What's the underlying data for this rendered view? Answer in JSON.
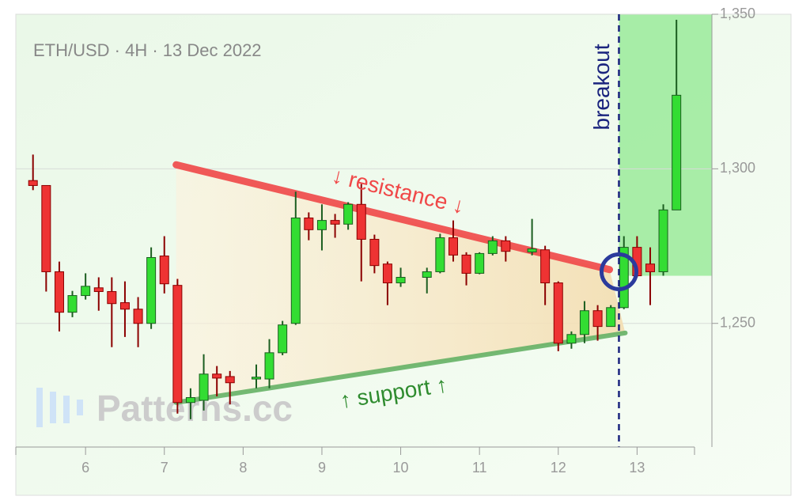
{
  "chart_data": {
    "type": "candlestick",
    "title": "ETH/USD · 4H · 13 Dec 2022",
    "watermark": "Patterns.cc",
    "up_color": "#33dd33",
    "down_color": "#ee3333",
    "x": [
      5.333,
      5.5,
      5.667,
      5.833,
      6,
      6.167,
      6.333,
      6.5,
      6.667,
      6.833,
      7,
      7.167,
      7.333,
      7.5,
      7.667,
      7.833,
      8.167,
      8.333,
      8.5,
      8.667,
      8.833,
      9,
      9.167,
      9.333,
      9.5,
      9.667,
      9.833,
      10,
      10.333,
      10.5,
      10.667,
      10.833,
      11,
      11.167,
      11.333,
      11.667,
      11.833,
      12,
      12.167,
      12.333,
      12.5,
      12.667,
      12.833,
      13,
      13.167,
      13.333,
      13.5
    ],
    "open": [
      1296.2,
      1294.6,
      1266.7,
      1253.6,
      1259,
      1261.5,
      1260.3,
      1256.7,
      1254.6,
      1250,
      1271.8,
      1262.3,
      1224.4,
      1225.1,
      1233.6,
      1232.8,
      1232,
      1232,
      1240.5,
      1250,
      1284.1,
      1280.3,
      1283.3,
      1282.1,
      1288.5,
      1277.2,
      1269.2,
      1263.1,
      1264.9,
      1266.7,
      1277.7,
      1272.1,
      1266.2,
      1272.6,
      1276.7,
      1273.1,
      1273.8,
      1263.1,
      1243.6,
      1246.4,
      1254.1,
      1249,
      1255.1,
      1274.6,
      1269.2,
      1266.7,
      1286.7
    ],
    "high": [
      1304.6,
      1294.6,
      1270,
      1260.5,
      1266.2,
      1264.9,
      1264.9,
      1263.6,
      1258.5,
      1274.6,
      1278.2,
      1264.4,
      1229,
      1240,
      1236.2,
      1234.6,
      1236.7,
      1244.9,
      1250.8,
      1292.6,
      1285.9,
      1288.5,
      1285.4,
      1289.2,
      1295.1,
      1278.7,
      1270,
      1268,
      1268,
      1279,
      1283.3,
      1273,
      1273,
      1278.2,
      1278.2,
      1283.8,
      1275.1,
      1263.6,
      1247.4,
      1257.2,
      1255.9,
      1255.9,
      1278.2,
      1278.2,
      1274.6,
      1288.5,
      1348.2
    ],
    "low": [
      1293.1,
      1260.3,
      1247.4,
      1252,
      1257.7,
      1254.1,
      1242.3,
      1245.6,
      1242.3,
      1248.2,
      1259.7,
      1220.8,
      1219,
      1221.8,
      1226.4,
      1223.8,
      1229,
      1229,
      1239.7,
      1249.5,
      1276.9,
      1273.6,
      1277.7,
      1280.3,
      1263.6,
      1266.2,
      1255.9,
      1261.8,
      1259.7,
      1266.2,
      1270,
      1262.3,
      1265.9,
      1272,
      1270,
      1272,
      1255.9,
      1241,
      1241.8,
      1243.6,
      1244.4,
      1249,
      1254.6,
      1264.9,
      1255.9,
      1265.4,
      1286.7
    ],
    "close": [
      1294.6,
      1266.7,
      1253.6,
      1259,
      1262,
      1260.3,
      1256.4,
      1254.6,
      1250,
      1271.3,
      1262.8,
      1224.4,
      1226,
      1233.6,
      1232.3,
      1230.8,
      1232.6,
      1240.5,
      1249.5,
      1284.1,
      1280.3,
      1283.3,
      1282.1,
      1288.5,
      1277.2,
      1268.7,
      1263.1,
      1264.9,
      1266.7,
      1277.7,
      1272.1,
      1266.2,
      1272.6,
      1276.7,
      1273.3,
      1274.1,
      1263.1,
      1243.6,
      1246.4,
      1254.1,
      1249,
      1255.1,
      1274.6,
      1265.4,
      1266.7,
      1286.7,
      1323.8
    ],
    "xlim": [
      5.115,
      13.95
    ],
    "ylim": [
      1210,
      1350
    ],
    "xticks": [
      6,
      7,
      8,
      9,
      10,
      11,
      12,
      13
    ],
    "yticks": [
      {
        "value": 1250,
        "label": "1,250"
      },
      {
        "value": 1300,
        "label": "1,300"
      },
      {
        "value": 1350,
        "label": "1,350"
      }
    ],
    "grid": true,
    "resistance": {
      "label": "↓ resistance ↓",
      "color": "#f04848",
      "x": [
        7.15,
        12.65
      ],
      "y": [
        1301.3,
        1267.4
      ]
    },
    "support": {
      "label": "↑ support ↑",
      "color": "#66b266",
      "x": [
        7.15,
        12.85
      ],
      "y": [
        1224.4,
        1246.9
      ]
    },
    "breakout": {
      "label": "breakout",
      "color": "#1a237e",
      "x": 12.77,
      "zone_low": 1265.4,
      "circle_y": 1266.7
    }
  }
}
